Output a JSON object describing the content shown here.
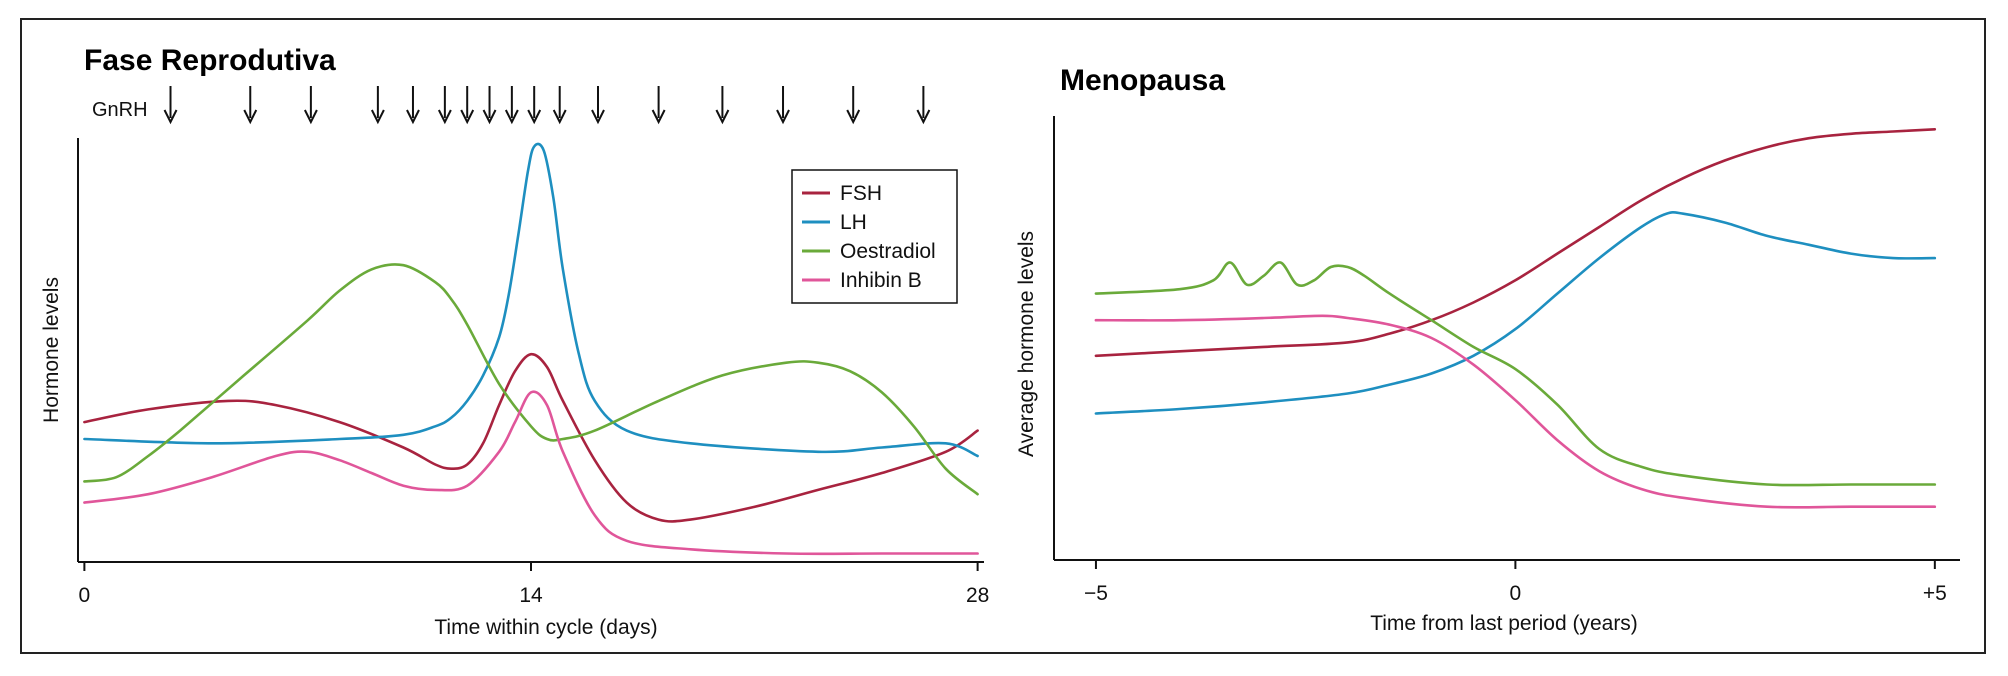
{
  "colors": {
    "FSH": "#a8233f",
    "LH": "#1e8fc0",
    "Oestradiol": "#6aaa3a",
    "Inhibin B": "#e0569a",
    "axis": "#111111"
  },
  "chart_data": [
    {
      "type": "line",
      "title": "Fase Reprodutiva",
      "xlabel": "Time within cycle (days)",
      "ylabel": "Hormone levels",
      "xlim": [
        -0.2,
        28.2
      ],
      "ylim": [
        0,
        1
      ],
      "xticks": [
        0,
        14,
        28
      ],
      "xtick_labels": [
        "0",
        "14",
        "28"
      ],
      "grid": false,
      "legend": {
        "placement": "top-right",
        "entries": [
          "FSH",
          "LH",
          "Oestradiol",
          "Inhibin B"
        ]
      },
      "gnrh": {
        "label": "GnRH",
        "pulse_days": [
          2.7,
          5.2,
          7.1,
          9.2,
          10.3,
          11.3,
          12.0,
          12.7,
          13.4,
          14.1,
          14.9,
          16.1,
          18.0,
          20.0,
          21.9,
          24.1,
          26.3
        ]
      },
      "series": [
        {
          "name": "FSH",
          "x": [
            0,
            2,
            4.5,
            6,
            8,
            10,
            11,
            11.5,
            12,
            12.5,
            13,
            13.5,
            14,
            14.5,
            15,
            16,
            17,
            18,
            19,
            21,
            23,
            25,
            27,
            28
          ],
          "y": [
            0.33,
            0.36,
            0.38,
            0.37,
            0.33,
            0.27,
            0.23,
            0.22,
            0.23,
            0.28,
            0.37,
            0.45,
            0.49,
            0.46,
            0.38,
            0.24,
            0.14,
            0.1,
            0.1,
            0.13,
            0.17,
            0.21,
            0.26,
            0.31
          ]
        },
        {
          "name": "LH",
          "x": [
            0,
            4,
            8,
            10,
            11,
            11.5,
            12,
            12.5,
            13,
            13.3,
            13.6,
            13.9,
            14.1,
            14.4,
            14.7,
            15,
            15.5,
            16,
            17,
            19,
            23,
            25,
            27,
            28
          ],
          "y": [
            0.29,
            0.28,
            0.29,
            0.3,
            0.32,
            0.34,
            0.38,
            0.44,
            0.53,
            0.63,
            0.77,
            0.92,
            0.98,
            0.97,
            0.86,
            0.69,
            0.49,
            0.38,
            0.31,
            0.28,
            0.26,
            0.27,
            0.28,
            0.25
          ]
        },
        {
          "name": "Oestradiol",
          "x": [
            0,
            1,
            2,
            3,
            5,
            7,
            8,
            9,
            10,
            11,
            11.5,
            12,
            13,
            14,
            14.5,
            15,
            16,
            18,
            20,
            22,
            23,
            24,
            25,
            26,
            27,
            28
          ],
          "y": [
            0.19,
            0.2,
            0.25,
            0.31,
            0.44,
            0.57,
            0.64,
            0.69,
            0.7,
            0.66,
            0.62,
            0.56,
            0.42,
            0.32,
            0.29,
            0.29,
            0.31,
            0.38,
            0.44,
            0.47,
            0.47,
            0.45,
            0.4,
            0.32,
            0.22,
            0.16
          ]
        },
        {
          "name": "Inhibin B",
          "x": [
            0,
            2,
            4,
            6,
            7,
            8,
            9,
            10,
            11,
            12,
            13,
            13.5,
            14,
            14.5,
            15,
            16,
            17,
            19,
            22,
            25,
            28
          ],
          "y": [
            0.14,
            0.16,
            0.2,
            0.25,
            0.26,
            0.24,
            0.21,
            0.18,
            0.17,
            0.18,
            0.26,
            0.33,
            0.4,
            0.37,
            0.26,
            0.11,
            0.05,
            0.03,
            0.02,
            0.02,
            0.02
          ]
        }
      ]
    },
    {
      "type": "line",
      "title": "Menopausa",
      "xlabel": "Time from last period (years)",
      "ylabel": "Average hormone levels",
      "xlim": [
        -5.5,
        5.3
      ],
      "ylim": [
        0,
        1
      ],
      "xticks": [
        -5,
        0,
        5
      ],
      "xtick_labels": [
        "−5",
        "0",
        "+5"
      ],
      "grid": false,
      "series": [
        {
          "name": "FSH",
          "x": [
            -5,
            -4,
            -3,
            -2,
            -1.5,
            -1,
            -0.5,
            0,
            0.5,
            1,
            1.5,
            2,
            2.5,
            3,
            3.5,
            4,
            4.5,
            5
          ],
          "y": [
            0.46,
            0.47,
            0.48,
            0.49,
            0.51,
            0.54,
            0.58,
            0.63,
            0.69,
            0.75,
            0.81,
            0.86,
            0.9,
            0.93,
            0.95,
            0.96,
            0.965,
            0.97
          ]
        },
        {
          "name": "LH",
          "x": [
            -5,
            -4,
            -3,
            -2,
            -1.5,
            -1,
            -0.5,
            0,
            0.5,
            1,
            1.5,
            1.8,
            2,
            2.5,
            3,
            3.5,
            4,
            4.5,
            5
          ],
          "y": [
            0.33,
            0.34,
            0.355,
            0.375,
            0.395,
            0.42,
            0.46,
            0.52,
            0.6,
            0.68,
            0.75,
            0.78,
            0.78,
            0.76,
            0.73,
            0.71,
            0.69,
            0.68,
            0.68
          ]
        },
        {
          "name": "Oestradiol",
          "x": [
            -5,
            -4,
            -3.6,
            -3.4,
            -3.2,
            -3.0,
            -2.8,
            -2.6,
            -2.4,
            -2.2,
            -2.0,
            -1.8,
            -1.5,
            -1.0,
            -0.5,
            0,
            0.5,
            1,
            1.5,
            2,
            3,
            4,
            5
          ],
          "y": [
            0.6,
            0.61,
            0.63,
            0.67,
            0.62,
            0.64,
            0.67,
            0.62,
            0.63,
            0.66,
            0.66,
            0.64,
            0.6,
            0.54,
            0.48,
            0.43,
            0.35,
            0.25,
            0.21,
            0.19,
            0.17,
            0.17,
            0.17
          ]
        },
        {
          "name": "Inhibin B",
          "x": [
            -5,
            -4,
            -3,
            -2.3,
            -2,
            -1.5,
            -1,
            -0.5,
            0,
            0.5,
            1,
            1.5,
            2,
            3,
            4,
            5
          ],
          "y": [
            0.54,
            0.54,
            0.545,
            0.55,
            0.545,
            0.53,
            0.5,
            0.44,
            0.36,
            0.27,
            0.2,
            0.16,
            0.14,
            0.12,
            0.12,
            0.12
          ]
        }
      ]
    }
  ]
}
